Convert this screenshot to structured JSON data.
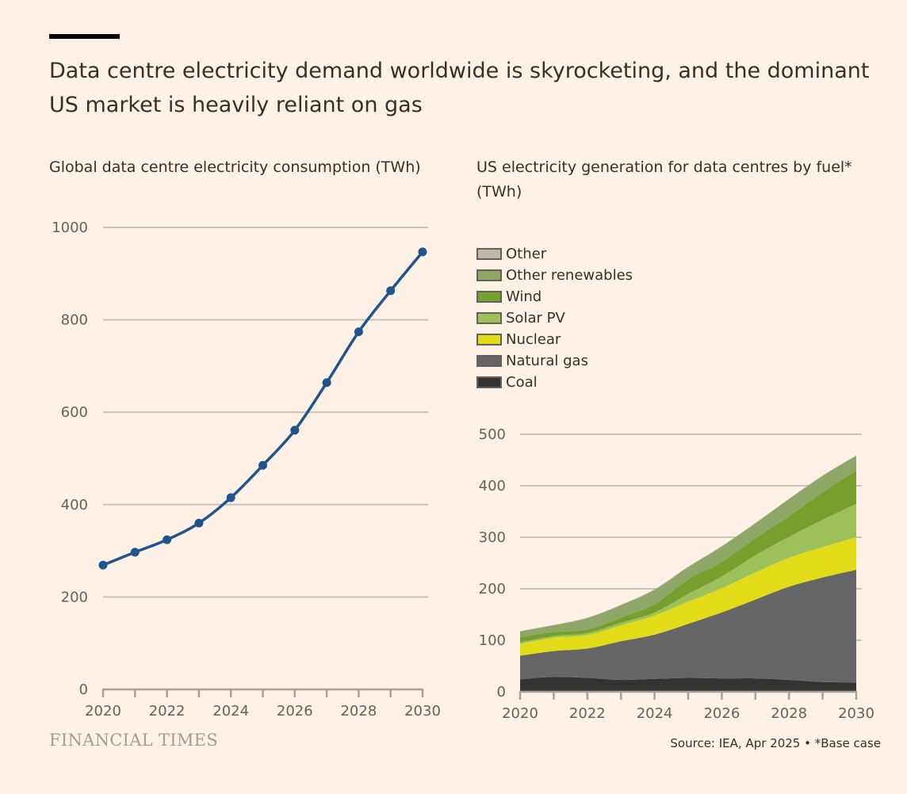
{
  "title": "Data centre electricity demand worldwide is skyrocketing, and the dominant US market is heavily reliant on gas",
  "footer": {
    "logo": "FINANCIAL TIMES",
    "source": "Source: IEA, Apr 2025 • *Base case"
  },
  "colors": {
    "background": "#fff1e5",
    "line": "#1e558f",
    "grid": "#ccc1b7",
    "axis": "#a7a19c"
  },
  "chart_data": [
    {
      "type": "line",
      "title": "Global data centre electricity consumption (TWh)",
      "x": [
        2020,
        2021,
        2022,
        2023,
        2024,
        2025,
        2026,
        2027,
        2028,
        2029,
        2030
      ],
      "series": [
        {
          "values": [
            269,
            297,
            324,
            360,
            415,
            485,
            561,
            664,
            774,
            863,
            947
          ]
        }
      ],
      "xlim": [
        2020,
        2030
      ],
      "ylim": [
        0,
        1000
      ],
      "xticks": [
        "2020",
        "2022",
        "2024",
        "2026",
        "2028",
        "2030"
      ],
      "yticks": [
        "0",
        "200",
        "400",
        "600",
        "800",
        "1000"
      ],
      "grid": true
    },
    {
      "type": "area",
      "stacked": true,
      "title": "US electricity generation for data centres by fuel* (TWh)",
      "x": [
        2020,
        2021,
        2022,
        2023,
        2024,
        2025,
        2026,
        2027,
        2028,
        2029,
        2030
      ],
      "series": [
        {
          "name": "Coal",
          "color": "#333333",
          "values": [
            24,
            29,
            27,
            23,
            25,
            27,
            26,
            26,
            23,
            19,
            18
          ]
        },
        {
          "name": "Natural gas",
          "color": "#666666",
          "values": [
            46,
            50,
            57,
            75,
            86,
            105,
            128,
            153,
            181,
            203,
            219
          ]
        },
        {
          "name": "Nuclear",
          "color": "#e1dc17",
          "values": [
            23,
            26,
            26,
            31,
            37,
            43,
            47,
            53,
            56,
            59,
            63
          ]
        },
        {
          "name": "Solar PV",
          "color": "#9cc15a",
          "values": [
            3,
            3,
            4,
            5,
            6,
            15,
            23,
            33,
            41,
            53,
            65
          ]
        },
        {
          "name": "Wind",
          "color": "#76a02e",
          "values": [
            10,
            8,
            7,
            10,
            16,
            28,
            28,
            33,
            40,
            53,
            64
          ]
        },
        {
          "name": "Other renewables",
          "color": "#8ea767",
          "values": [
            11,
            13,
            22,
            24,
            28,
            24,
            30,
            29,
            33,
            32,
            29
          ]
        },
        {
          "name": "Other",
          "color": "#bdb7b0",
          "values": [
            1,
            1,
            1,
            1,
            1,
            1,
            1,
            1,
            1,
            1,
            1
          ]
        }
      ],
      "legend_order": [
        "Other",
        "Other renewables",
        "Wind",
        "Solar PV",
        "Nuclear",
        "Natural gas",
        "Coal"
      ],
      "legend_position": "top-left",
      "xlim": [
        2020,
        2030
      ],
      "ylim": [
        0,
        500
      ],
      "xticks": [
        "2020",
        "2022",
        "2024",
        "2026",
        "2028",
        "2030"
      ],
      "yticks": [
        "0",
        "100",
        "200",
        "300",
        "400",
        "500"
      ],
      "grid": true
    }
  ]
}
